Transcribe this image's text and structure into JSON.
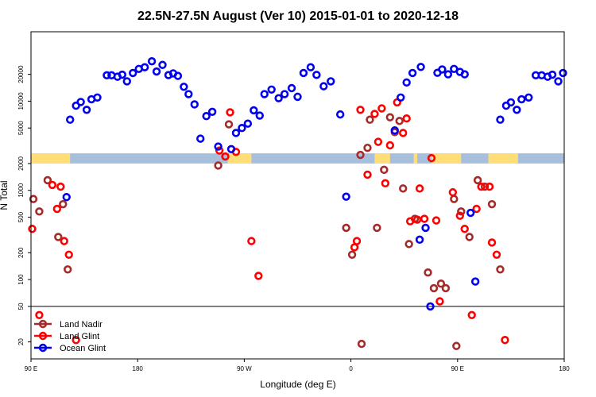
{
  "chart_data": {
    "type": "scatter",
    "title": "22.5N-27.5N August (Ver 10)   2015-01-01 to 2020-12-18",
    "xlabel": "Longitude (deg E)",
    "ylabel": "N Total",
    "xlim": [
      90,
      540
    ],
    "x_ticks": [
      {
        "value": 90,
        "label": "90 E"
      },
      {
        "value": 180,
        "label": "180"
      },
      {
        "value": 270,
        "label": "90 W"
      },
      {
        "value": 360,
        "label": "0"
      },
      {
        "value": 450,
        "label": "90 E"
      },
      {
        "value": 540,
        "label": "180"
      }
    ],
    "y_scale": "log",
    "y_ticks": [
      {
        "value": 20,
        "label": "20"
      },
      {
        "value": 50,
        "label": "50"
      },
      {
        "value": 100,
        "label": "100"
      },
      {
        "value": 200,
        "label": "200"
      },
      {
        "value": 500,
        "label": "500"
      },
      {
        "value": 1000,
        "label": "1000"
      },
      {
        "value": 2000,
        "label": "2000"
      },
      {
        "value": 5000,
        "label": "5000"
      },
      {
        "value": 10000,
        "label": "10000"
      },
      {
        "value": 20000,
        "label": "20000"
      }
    ],
    "reference_line_y": 50,
    "surface_band": {
      "y_range": [
        2000,
        2600
      ],
      "colors": {
        "land": "#ffdd77",
        "ocean": "#a7bfdc"
      },
      "land_segments": [
        [
          90,
          123
        ],
        [
          256,
          276
        ],
        [
          380,
          393
        ],
        [
          413,
          416
        ],
        [
          428,
          453
        ],
        [
          476,
          501
        ]
      ]
    },
    "legend_position": "bottom-left",
    "series": [
      {
        "name": "Land Nadir",
        "color": "#a52a2a",
        "points": [
          [
            92,
            800
          ],
          [
            97,
            580
          ],
          [
            104,
            1300
          ],
          [
            117,
            700
          ],
          [
            121,
            130
          ],
          [
            113,
            300
          ],
          [
            248,
            1900
          ],
          [
            257,
            5500
          ],
          [
            356,
            380
          ],
          [
            361,
            190
          ],
          [
            368,
            2500
          ],
          [
            374,
            3000
          ],
          [
            376,
            6200
          ],
          [
            382,
            380
          ],
          [
            388,
            1700
          ],
          [
            393,
            6600
          ],
          [
            397,
            4500
          ],
          [
            401,
            6000
          ],
          [
            404,
            1050
          ],
          [
            409,
            250
          ],
          [
            414,
            480
          ],
          [
            425,
            120
          ],
          [
            430,
            80
          ],
          [
            436,
            90
          ],
          [
            440,
            80
          ],
          [
            447,
            800
          ],
          [
            453,
            580
          ],
          [
            460,
            300
          ],
          [
            467,
            1300
          ],
          [
            473,
            1100
          ],
          [
            479,
            700
          ],
          [
            486,
            130
          ],
          [
            449,
            18
          ],
          [
            369,
            19
          ]
        ]
      },
      {
        "name": "Land Glint",
        "color": "#ff0000",
        "points": [
          [
            91,
            370
          ],
          [
            97,
            40
          ],
          [
            108,
            1150
          ],
          [
            112,
            620
          ],
          [
            115,
            1100
          ],
          [
            118,
            270
          ],
          [
            122,
            190
          ],
          [
            128,
            21
          ],
          [
            249,
            2800
          ],
          [
            254,
            2400
          ],
          [
            258,
            7500
          ],
          [
            263,
            2700
          ],
          [
            276,
            270
          ],
          [
            282,
            110
          ],
          [
            363,
            230
          ],
          [
            365,
            270
          ],
          [
            368,
            8000
          ],
          [
            374,
            1500
          ],
          [
            380,
            7200
          ],
          [
            383,
            3500
          ],
          [
            386,
            8300
          ],
          [
            389,
            1200
          ],
          [
            393,
            3200
          ],
          [
            399,
            9700
          ],
          [
            404,
            4400
          ],
          [
            407,
            6400
          ],
          [
            410,
            450
          ],
          [
            416,
            470
          ],
          [
            418,
            1050
          ],
          [
            422,
            480
          ],
          [
            428,
            2300
          ],
          [
            432,
            460
          ],
          [
            435,
            57
          ],
          [
            446,
            950
          ],
          [
            452,
            520
          ],
          [
            456,
            370
          ],
          [
            462,
            40
          ],
          [
            466,
            620
          ],
          [
            470,
            1100
          ],
          [
            477,
            1100
          ],
          [
            479,
            260
          ],
          [
            483,
            190
          ],
          [
            490,
            21
          ]
        ]
      },
      {
        "name": "Ocean Glint",
        "color": "#0000ee",
        "points": [
          [
            120,
            840
          ],
          [
            123,
            6200
          ],
          [
            128,
            8900
          ],
          [
            132,
            9800
          ],
          [
            137,
            8000
          ],
          [
            141,
            10500
          ],
          [
            146,
            11000
          ],
          [
            154,
            19500
          ],
          [
            158,
            19500
          ],
          [
            163,
            18800
          ],
          [
            167,
            19800
          ],
          [
            171,
            16700
          ],
          [
            176,
            20700
          ],
          [
            181,
            23000
          ],
          [
            186,
            24000
          ],
          [
            192,
            28000
          ],
          [
            196,
            21500
          ],
          [
            201,
            25500
          ],
          [
            206,
            19600
          ],
          [
            210,
            20500
          ],
          [
            214,
            19200
          ],
          [
            219,
            14500
          ],
          [
            223,
            12000
          ],
          [
            228,
            9200
          ],
          [
            233,
            3800
          ],
          [
            238,
            6800
          ],
          [
            243,
            7600
          ],
          [
            248,
            3100
          ],
          [
            259,
            2900
          ],
          [
            263,
            4400
          ],
          [
            268,
            5000
          ],
          [
            273,
            5600
          ],
          [
            278,
            7900
          ],
          [
            283,
            6900
          ],
          [
            287,
            12000
          ],
          [
            293,
            13500
          ],
          [
            299,
            10800
          ],
          [
            304,
            12000
          ],
          [
            310,
            14000
          ],
          [
            315,
            11200
          ],
          [
            320,
            20700
          ],
          [
            326,
            24000
          ],
          [
            331,
            19700
          ],
          [
            337,
            14700
          ],
          [
            343,
            16700
          ],
          [
            351,
            7100
          ],
          [
            356,
            850
          ],
          [
            397,
            4700
          ],
          [
            402,
            11000
          ],
          [
            407,
            16200
          ],
          [
            412,
            20700
          ],
          [
            418,
            280
          ],
          [
            419,
            24200
          ],
          [
            423,
            380
          ],
          [
            427,
            50
          ],
          [
            433,
            20800
          ],
          [
            437,
            22700
          ],
          [
            442,
            20000
          ],
          [
            447,
            23000
          ],
          [
            452,
            21300
          ],
          [
            456,
            20000
          ],
          [
            461,
            560
          ],
          [
            465,
            95
          ],
          [
            486,
            6200
          ],
          [
            491,
            8900
          ],
          [
            495,
            9700
          ],
          [
            500,
            8000
          ],
          [
            504,
            10500
          ],
          [
            510,
            11000
          ],
          [
            516,
            19500
          ],
          [
            521,
            19500
          ],
          [
            526,
            18800
          ],
          [
            530,
            19800
          ],
          [
            535,
            16700
          ],
          [
            539,
            20700
          ]
        ]
      }
    ]
  }
}
